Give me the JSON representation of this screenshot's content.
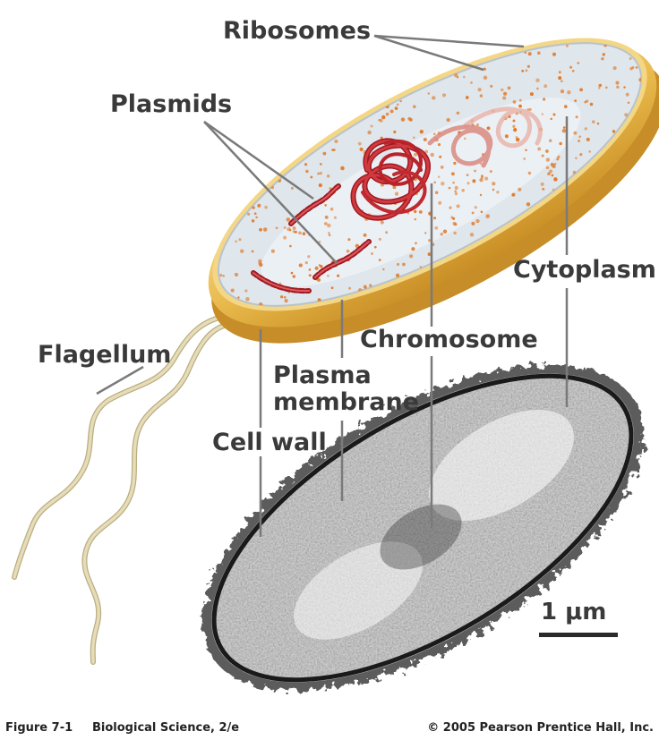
{
  "labels": {
    "ribosomes": "Ribosomes",
    "plasmids": "Plasmids",
    "flagellum": "Flagellum",
    "cytoplasm": "Cytoplasm",
    "chromosome": "Chromosome",
    "plasma_membrane_line1": "Plasma",
    "plasma_membrane_line2": "membrane",
    "cell_wall": "Cell wall"
  },
  "scale_bar": {
    "label": "1 μm"
  },
  "caption": {
    "figure": "Figure 7-1",
    "book": "Biological Science, 2/e",
    "copyright": "© 2005 Pearson Prentice Hall, Inc."
  },
  "colors": {
    "cell_wall": "#e8b84a",
    "cell_wall_rim": "#f6d98a",
    "cytoplasm": "#dfe6ec",
    "chromosome": "#b8242a",
    "ribosome": "#e07a2a",
    "flagellum": "#ddd3aa",
    "leader_line": "#7a7a7a",
    "micrograph": "#2a2a2a"
  }
}
